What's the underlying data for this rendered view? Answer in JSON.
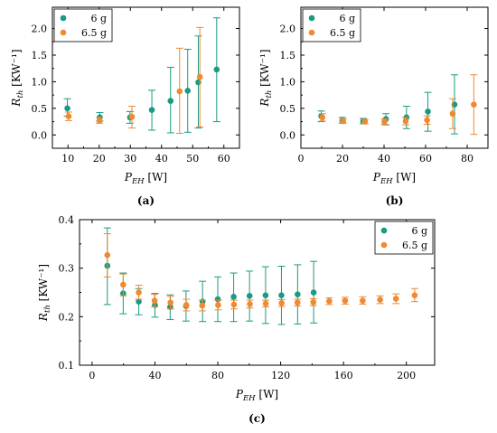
{
  "colors": {
    "series_6g": "#1a9a83",
    "series_6_5g": "#ee8a31"
  },
  "chart_data": [
    {
      "panel": "(a)",
      "type": "scatter",
      "xlabel": {
        "main": "P",
        "sub": "EH",
        "unit": " [W]"
      },
      "ylabel": {
        "main": "R",
        "sub": "th",
        "unit": " [KW⁻¹]"
      },
      "xlim": [
        5,
        65
      ],
      "ylim": [
        -0.25,
        2.4
      ],
      "xticks": [
        10,
        20,
        30,
        40,
        50,
        60
      ],
      "yticks": [
        0.0,
        0.5,
        1.0,
        1.5,
        2.0
      ],
      "ytick_labels": [
        "0.0",
        "0.5",
        "1.0",
        "1.5",
        "2.0"
      ],
      "legend": {
        "position": "top-left",
        "entries": [
          "6 g",
          "6.5 g"
        ]
      },
      "series": [
        {
          "name": "6 g",
          "points": [
            {
              "x": 9.8,
              "y": 0.5,
              "lo": 0.35,
              "hi": 0.68
            },
            {
              "x": 20.2,
              "y": 0.33,
              "lo": 0.26,
              "hi": 0.42
            },
            {
              "x": 29.9,
              "y": 0.33,
              "lo": 0.22,
              "hi": 0.44
            },
            {
              "x": 36.9,
              "y": 0.47,
              "lo": 0.09,
              "hi": 0.84
            },
            {
              "x": 42.9,
              "y": 0.64,
              "lo": 0.04,
              "hi": 1.27
            },
            {
              "x": 48.4,
              "y": 0.83,
              "lo": 0.05,
              "hi": 1.61
            },
            {
              "x": 51.8,
              "y": 0.99,
              "lo": 0.13,
              "hi": 1.86
            },
            {
              "x": 57.7,
              "y": 1.23,
              "lo": 0.25,
              "hi": 2.2
            }
          ]
        },
        {
          "name": "6.5 g",
          "points": [
            {
              "x": 10.2,
              "y": 0.35,
              "lo": 0.27,
              "hi": 0.43
            },
            {
              "x": 20.1,
              "y": 0.27,
              "lo": 0.22,
              "hi": 0.33
            },
            {
              "x": 30.5,
              "y": 0.34,
              "lo": 0.13,
              "hi": 0.54
            },
            {
              "x": 45.8,
              "y": 0.82,
              "lo": 0.03,
              "hi": 1.63
            },
            {
              "x": 52.3,
              "y": 1.09,
              "lo": 0.15,
              "hi": 2.02
            }
          ]
        }
      ]
    },
    {
      "panel": "(b)",
      "type": "scatter",
      "xlabel": {
        "main": "P",
        "sub": "EH",
        "unit": " [W]"
      },
      "ylabel": {
        "main": "R",
        "sub": "th",
        "unit": " [KW⁻¹]"
      },
      "xlim": [
        0,
        90
      ],
      "ylim": [
        -0.25,
        2.4
      ],
      "xticks": [
        0,
        20,
        40,
        60,
        80
      ],
      "yticks": [
        0.0,
        0.5,
        1.0,
        1.5,
        2.0
      ],
      "ytick_labels": [
        "0.0",
        "0.5",
        "1.0",
        "1.5",
        "2.0"
      ],
      "legend": {
        "position": "top-left",
        "entries": [
          "6 g",
          "6.5 g"
        ]
      },
      "series": [
        {
          "name": "6 g",
          "points": [
            {
              "x": 9.8,
              "y": 0.35,
              "lo": 0.25,
              "hi": 0.45
            },
            {
              "x": 19.9,
              "y": 0.27,
              "lo": 0.22,
              "hi": 0.33
            },
            {
              "x": 30.0,
              "y": 0.26,
              "lo": 0.21,
              "hi": 0.31
            },
            {
              "x": 40.9,
              "y": 0.3,
              "lo": 0.19,
              "hi": 0.4
            },
            {
              "x": 50.8,
              "y": 0.33,
              "lo": 0.12,
              "hi": 0.54
            },
            {
              "x": 61.1,
              "y": 0.44,
              "lo": 0.07,
              "hi": 0.8
            },
            {
              "x": 73.9,
              "y": 0.57,
              "lo": 0.02,
              "hi": 1.13
            }
          ]
        },
        {
          "name": "6.5 g",
          "points": [
            {
              "x": 10.3,
              "y": 0.33,
              "lo": 0.26,
              "hi": 0.4
            },
            {
              "x": 20.3,
              "y": 0.26,
              "lo": 0.22,
              "hi": 0.3
            },
            {
              "x": 30.8,
              "y": 0.25,
              "lo": 0.21,
              "hi": 0.29
            },
            {
              "x": 40.2,
              "y": 0.25,
              "lo": 0.2,
              "hi": 0.3
            },
            {
              "x": 50.4,
              "y": 0.26,
              "lo": 0.19,
              "hi": 0.33
            },
            {
              "x": 60.7,
              "y": 0.28,
              "lo": 0.2,
              "hi": 0.36
            },
            {
              "x": 73.0,
              "y": 0.4,
              "lo": 0.12,
              "hi": 0.68
            },
            {
              "x": 83.2,
              "y": 0.57,
              "lo": 0.01,
              "hi": 1.13
            }
          ]
        }
      ]
    },
    {
      "panel": "(c)",
      "type": "scatter",
      "xlabel": {
        "main": "P",
        "sub": "EH",
        "unit": " [W]"
      },
      "ylabel": {
        "main": "R",
        "sub": "th",
        "unit": " [KW⁻¹]"
      },
      "xlim": [
        -8,
        218
      ],
      "ylim": [
        0.1,
        0.4
      ],
      "xticks": [
        0,
        40,
        80,
        120,
        160,
        200
      ],
      "yticks": [
        0.1,
        0.2,
        0.3,
        0.4
      ],
      "ytick_labels": [
        "0.1",
        "0.2",
        "0.3",
        "0.4"
      ],
      "legend": {
        "position": "top-right",
        "entries": [
          "6 g",
          "6.5 g"
        ]
      },
      "series": [
        {
          "name": "6 g",
          "points": [
            {
              "x": 9.7,
              "y": 0.305,
              "lo": 0.225,
              "hi": 0.383
            },
            {
              "x": 19.8,
              "y": 0.248,
              "lo": 0.206,
              "hi": 0.29
            },
            {
              "x": 29.7,
              "y": 0.231,
              "lo": 0.204,
              "hi": 0.258
            },
            {
              "x": 40.0,
              "y": 0.224,
              "lo": 0.199,
              "hi": 0.248
            },
            {
              "x": 49.7,
              "y": 0.22,
              "lo": 0.194,
              "hi": 0.245
            },
            {
              "x": 59.8,
              "y": 0.222,
              "lo": 0.191,
              "hi": 0.253
            },
            {
              "x": 70.3,
              "y": 0.231,
              "lo": 0.19,
              "hi": 0.273
            },
            {
              "x": 80.0,
              "y": 0.236,
              "lo": 0.19,
              "hi": 0.282
            },
            {
              "x": 90.1,
              "y": 0.241,
              "lo": 0.19,
              "hi": 0.29
            },
            {
              "x": 100.2,
              "y": 0.243,
              "lo": 0.191,
              "hi": 0.294
            },
            {
              "x": 110.4,
              "y": 0.244,
              "lo": 0.186,
              "hi": 0.303
            },
            {
              "x": 120.5,
              "y": 0.244,
              "lo": 0.184,
              "hi": 0.304
            },
            {
              "x": 130.8,
              "y": 0.246,
              "lo": 0.185,
              "hi": 0.307
            },
            {
              "x": 141.0,
              "y": 0.25,
              "lo": 0.187,
              "hi": 0.314
            }
          ]
        },
        {
          "name": "6.5 g",
          "points": [
            {
              "x": 9.7,
              "y": 0.327,
              "lo": 0.282,
              "hi": 0.371
            },
            {
              "x": 19.8,
              "y": 0.266,
              "lo": 0.243,
              "hi": 0.288
            },
            {
              "x": 29.7,
              "y": 0.25,
              "lo": 0.236,
              "hi": 0.265
            },
            {
              "x": 39.8,
              "y": 0.233,
              "lo": 0.22,
              "hi": 0.246
            },
            {
              "x": 49.9,
              "y": 0.229,
              "lo": 0.216,
              "hi": 0.242
            },
            {
              "x": 60.0,
              "y": 0.224,
              "lo": 0.212,
              "hi": 0.236
            },
            {
              "x": 70.1,
              "y": 0.223,
              "lo": 0.212,
              "hi": 0.234
            },
            {
              "x": 80.2,
              "y": 0.224,
              "lo": 0.214,
              "hi": 0.234
            },
            {
              "x": 90.3,
              "y": 0.225,
              "lo": 0.216,
              "hi": 0.234
            },
            {
              "x": 100.4,
              "y": 0.226,
              "lo": 0.218,
              "hi": 0.234
            },
            {
              "x": 110.5,
              "y": 0.227,
              "lo": 0.22,
              "hi": 0.234
            },
            {
              "x": 120.6,
              "y": 0.228,
              "lo": 0.221,
              "hi": 0.235
            },
            {
              "x": 130.7,
              "y": 0.229,
              "lo": 0.222,
              "hi": 0.236
            },
            {
              "x": 140.8,
              "y": 0.23,
              "lo": 0.223,
              "hi": 0.237
            },
            {
              "x": 150.9,
              "y": 0.232,
              "lo": 0.225,
              "hi": 0.239
            },
            {
              "x": 161.0,
              "y": 0.233,
              "lo": 0.226,
              "hi": 0.24
            },
            {
              "x": 172.2,
              "y": 0.233,
              "lo": 0.226,
              "hi": 0.241
            },
            {
              "x": 183.3,
              "y": 0.235,
              "lo": 0.227,
              "hi": 0.243
            },
            {
              "x": 193.4,
              "y": 0.237,
              "lo": 0.227,
              "hi": 0.247
            },
            {
              "x": 205.3,
              "y": 0.244,
              "lo": 0.231,
              "hi": 0.258
            }
          ]
        }
      ]
    }
  ]
}
